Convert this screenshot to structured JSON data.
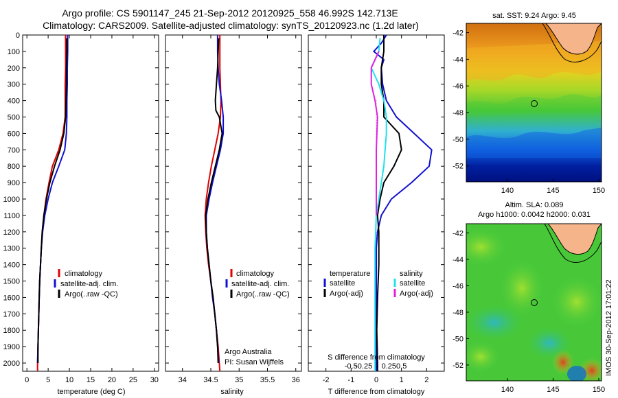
{
  "header": {
    "line1": "Argo profile: CS 5901147_245 21-Sep-2012 20120925_558 46.992S 142.713E",
    "line2": "Climatology: CARS2009. Satellite-adjusted climatology: synTS_20120923.nc (1.2d later)"
  },
  "side_stamp": "IMOS 30-Sep-2012 17:01:22",
  "colors": {
    "climatology": "#e00000",
    "satellite": "#1010d0",
    "argo": "#000000",
    "satellite_s": "#20e0f0",
    "argo_s": "#e020e0",
    "land": "#f6b48a"
  },
  "chart_data": [
    {
      "id": "temperature",
      "type": "line",
      "xlabel": "temperature (deg C)",
      "ylabel": "",
      "xlim": [
        -1,
        31
      ],
      "ylim": [
        2050,
        0
      ],
      "xticks": [
        0,
        5,
        10,
        15,
        20,
        25,
        30
      ],
      "yticks": [
        0,
        100,
        200,
        300,
        400,
        500,
        600,
        700,
        800,
        900,
        1000,
        1100,
        1200,
        1300,
        1400,
        1500,
        1600,
        1700,
        1800,
        1900,
        2000
      ],
      "legend": [
        "climatology",
        "satellite-adj. clim.",
        "Argo(..raw -QC)"
      ],
      "series": [
        {
          "name": "climatology",
          "color": "#e00000",
          "points": [
            [
              9.1,
              0
            ],
            [
              9.1,
              100
            ],
            [
              9.1,
              200
            ],
            [
              9.0,
              300
            ],
            [
              9.0,
              400
            ],
            [
              9.0,
              500
            ],
            [
              8.5,
              600
            ],
            [
              7.5,
              700
            ],
            [
              6.0,
              800
            ],
            [
              5.2,
              900
            ],
            [
              4.5,
              1000
            ],
            [
              4.0,
              1100
            ],
            [
              3.6,
              1200
            ],
            [
              3.4,
              1300
            ],
            [
              3.2,
              1400
            ],
            [
              3.0,
              1500
            ],
            [
              2.9,
              1600
            ],
            [
              2.8,
              1700
            ],
            [
              2.7,
              1800
            ],
            [
              2.6,
              1900
            ],
            [
              2.5,
              2000
            ],
            [
              2.5,
              2050
            ]
          ]
        },
        {
          "name": "satellite-adj. clim.",
          "color": "#1010d0",
          "points": [
            [
              9.6,
              0
            ],
            [
              9.6,
              100
            ],
            [
              9.5,
              200
            ],
            [
              9.5,
              300
            ],
            [
              9.4,
              400
            ],
            [
              9.4,
              500
            ],
            [
              9.3,
              600
            ],
            [
              8.9,
              700
            ],
            [
              7.5,
              800
            ],
            [
              6.0,
              900
            ],
            [
              5.0,
              1000
            ],
            [
              4.2,
              1100
            ],
            [
              3.7,
              1200
            ],
            [
              3.4,
              1300
            ],
            [
              3.2,
              1400
            ],
            [
              3.0,
              1500
            ],
            [
              2.9,
              1600
            ],
            [
              2.8,
              1700
            ],
            [
              2.7,
              1800
            ],
            [
              2.6,
              1900
            ],
            [
              2.5,
              2000
            ]
          ]
        },
        {
          "name": "Argo(..raw -QC)",
          "color": "#000000",
          "points": [
            [
              9.4,
              20
            ],
            [
              9.4,
              100
            ],
            [
              9.3,
              200
            ],
            [
              9.3,
              300
            ],
            [
              9.2,
              400
            ],
            [
              9.1,
              500
            ],
            [
              8.7,
              600
            ],
            [
              7.8,
              700
            ],
            [
              6.5,
              800
            ],
            [
              5.4,
              900
            ],
            [
              4.6,
              1000
            ],
            [
              4.0,
              1100
            ],
            [
              3.6,
              1200
            ],
            [
              3.4,
              1300
            ],
            [
              3.2,
              1400
            ],
            [
              3.0,
              1500
            ],
            [
              2.9,
              1600
            ],
            [
              2.8,
              1700
            ],
            [
              2.7,
              1800
            ],
            [
              2.6,
              1900
            ],
            [
              2.6,
              2000
            ]
          ]
        }
      ]
    },
    {
      "id": "salinity",
      "type": "line",
      "xlabel": "salinity",
      "ylabel": "",
      "xlim": [
        33.7,
        36.1
      ],
      "ylim": [
        2050,
        0
      ],
      "xticks": [
        34,
        34.5,
        35,
        35.5,
        36
      ],
      "legend": [
        "climatology",
        "satellite-adj. clim.",
        "Argo(..raw -QC)"
      ],
      "annotation": [
        "Argo Australia",
        "PI: Susan Wijffels"
      ],
      "series": [
        {
          "name": "climatology",
          "color": "#e00000",
          "points": [
            [
              34.66,
              0
            ],
            [
              34.66,
              100
            ],
            [
              34.66,
              200
            ],
            [
              34.67,
              300
            ],
            [
              34.68,
              400
            ],
            [
              34.67,
              500
            ],
            [
              34.63,
              600
            ],
            [
              34.57,
              700
            ],
            [
              34.51,
              800
            ],
            [
              34.46,
              900
            ],
            [
              34.42,
              1000
            ],
            [
              34.4,
              1100
            ],
            [
              34.41,
              1200
            ],
            [
              34.43,
              1300
            ],
            [
              34.46,
              1400
            ],
            [
              34.5,
              1500
            ],
            [
              34.54,
              1600
            ],
            [
              34.57,
              1700
            ],
            [
              34.6,
              1800
            ],
            [
              34.63,
              1900
            ],
            [
              34.65,
              2000
            ],
            [
              34.66,
              2050
            ]
          ]
        },
        {
          "name": "satellite-adj. clim.",
          "color": "#1010d0",
          "points": [
            [
              34.62,
              0
            ],
            [
              34.62,
              100
            ],
            [
              34.63,
              200
            ],
            [
              34.65,
              300
            ],
            [
              34.69,
              400
            ],
            [
              34.72,
              500
            ],
            [
              34.72,
              600
            ],
            [
              34.67,
              700
            ],
            [
              34.6,
              800
            ],
            [
              34.53,
              900
            ],
            [
              34.47,
              1000
            ],
            [
              34.42,
              1100
            ],
            [
              34.42,
              1200
            ],
            [
              34.44,
              1300
            ],
            [
              34.47,
              1400
            ],
            [
              34.5,
              1500
            ],
            [
              34.53,
              1600
            ],
            [
              34.57,
              1700
            ],
            [
              34.6,
              1800
            ],
            [
              34.62,
              1900
            ],
            [
              34.64,
              2000
            ]
          ]
        },
        {
          "name": "Argo(..raw -QC)",
          "color": "#000000",
          "points": [
            [
              34.64,
              20
            ],
            [
              34.63,
              100
            ],
            [
              34.62,
              200
            ],
            [
              34.6,
              300
            ],
            [
              34.58,
              400
            ],
            [
              34.59,
              460
            ],
            [
              34.65,
              500
            ],
            [
              34.7,
              600
            ],
            [
              34.65,
              700
            ],
            [
              34.58,
              800
            ],
            [
              34.51,
              900
            ],
            [
              34.45,
              1000
            ],
            [
              34.41,
              1100
            ],
            [
              34.42,
              1200
            ],
            [
              34.44,
              1300
            ],
            [
              34.47,
              1400
            ],
            [
              34.5,
              1500
            ],
            [
              34.54,
              1600
            ],
            [
              34.57,
              1700
            ],
            [
              34.6,
              1800
            ],
            [
              34.62,
              1900
            ],
            [
              34.63,
              2000
            ]
          ]
        }
      ]
    },
    {
      "id": "differences",
      "type": "line",
      "xlabel": "T difference from climatology",
      "xlabel_top": "S difference from climatology",
      "xlim": [
        -2.7,
        2.7
      ],
      "ylim": [
        2050,
        0
      ],
      "xticks": [
        -2,
        -1,
        0,
        1,
        2
      ],
      "xticks_s_labels": [
        "-0.5",
        "-0.25",
        "0",
        "0.25",
        "0.5"
      ],
      "legend_titles": [
        "temperature",
        "salinity"
      ],
      "legend_t": [
        "satellite",
        "Argo(-adj)"
      ],
      "legend_s": [
        "satellite",
        "Argo(-adj)"
      ],
      "series": [
        {
          "name": "T satellite",
          "color": "#1010d0",
          "points": [
            [
              0.4,
              0
            ],
            [
              0.2,
              50
            ],
            [
              -0.1,
              100
            ],
            [
              0.3,
              150
            ],
            [
              0.2,
              200
            ],
            [
              0.25,
              300
            ],
            [
              0.4,
              400
            ],
            [
              0.8,
              500
            ],
            [
              1.5,
              600
            ],
            [
              2.2,
              700
            ],
            [
              2.1,
              800
            ],
            [
              1.4,
              900
            ],
            [
              0.6,
              1000
            ],
            [
              0.2,
              1100
            ],
            [
              0.05,
              1200
            ],
            [
              0,
              1300
            ],
            [
              0,
              1500
            ],
            [
              0,
              2050
            ]
          ]
        },
        {
          "name": "T Argo(-adj)",
          "color": "#000000",
          "points": [
            [
              0.3,
              0
            ],
            [
              0.3,
              100
            ],
            [
              0.2,
              200
            ],
            [
              0.2,
              300
            ],
            [
              0.3,
              400
            ],
            [
              0.3,
              500
            ],
            [
              0.9,
              600
            ],
            [
              1.0,
              700
            ],
            [
              0.7,
              800
            ],
            [
              0.3,
              900
            ],
            [
              0.15,
              1000
            ],
            [
              0.05,
              1100
            ],
            [
              0.1,
              1200
            ],
            [
              0.1,
              1400
            ],
            [
              0.05,
              1600
            ],
            [
              0.02,
              1800
            ],
            [
              0.05,
              2000
            ],
            [
              0.05,
              2050
            ]
          ]
        },
        {
          "name": "S satellite",
          "color": "#20e0f0",
          "points": [
            [
              0.15,
              20
            ],
            [
              0.1,
              100
            ],
            [
              -0.2,
              200
            ],
            [
              0.1,
              300
            ],
            [
              0.3,
              400
            ],
            [
              0.4,
              500
            ],
            [
              0.4,
              600
            ],
            [
              0.35,
              700
            ],
            [
              0.3,
              800
            ],
            [
              0.2,
              900
            ],
            [
              0.1,
              1000
            ],
            [
              0.0,
              1100
            ],
            [
              -0.05,
              1300
            ],
            [
              -0.05,
              1600
            ],
            [
              -0.05,
              2050
            ]
          ]
        },
        {
          "name": "S Argo(-adj)",
          "color": "#e020e0",
          "points": [
            [
              0.1,
              100
            ],
            [
              -0.2,
              200
            ],
            [
              -0.2,
              300
            ],
            [
              -0.05,
              400
            ],
            [
              0.05,
              500
            ],
            [
              0.0,
              700
            ],
            [
              0.0,
              900
            ],
            [
              0.0,
              1100
            ]
          ]
        }
      ]
    },
    {
      "id": "map_sst",
      "type": "heatmap",
      "title": "sat. SST: 9.24  Argo: 9.45",
      "xlim": [
        135.5,
        150.3
      ],
      "ylim": [
        -53.2,
        -41.3
      ],
      "xticks": [
        140,
        145,
        150
      ],
      "yticks": [
        -42,
        -44,
        -46,
        -48,
        -50,
        -52
      ],
      "argo_position": [
        142.713,
        -46.992
      ]
    },
    {
      "id": "map_sla",
      "type": "heatmap",
      "title_lines": [
        "Altim. SLA: 0.089",
        "Argo h1000: 0.0042  h2000: 0.031"
      ],
      "xlim": [
        135.5,
        150.3
      ],
      "ylim": [
        -53.2,
        -41.3
      ],
      "xticks": [
        140,
        145,
        150
      ],
      "yticks": [
        -42,
        -44,
        -46,
        -48,
        -50,
        -52
      ],
      "argo_position": [
        142.713,
        -46.992
      ]
    }
  ]
}
